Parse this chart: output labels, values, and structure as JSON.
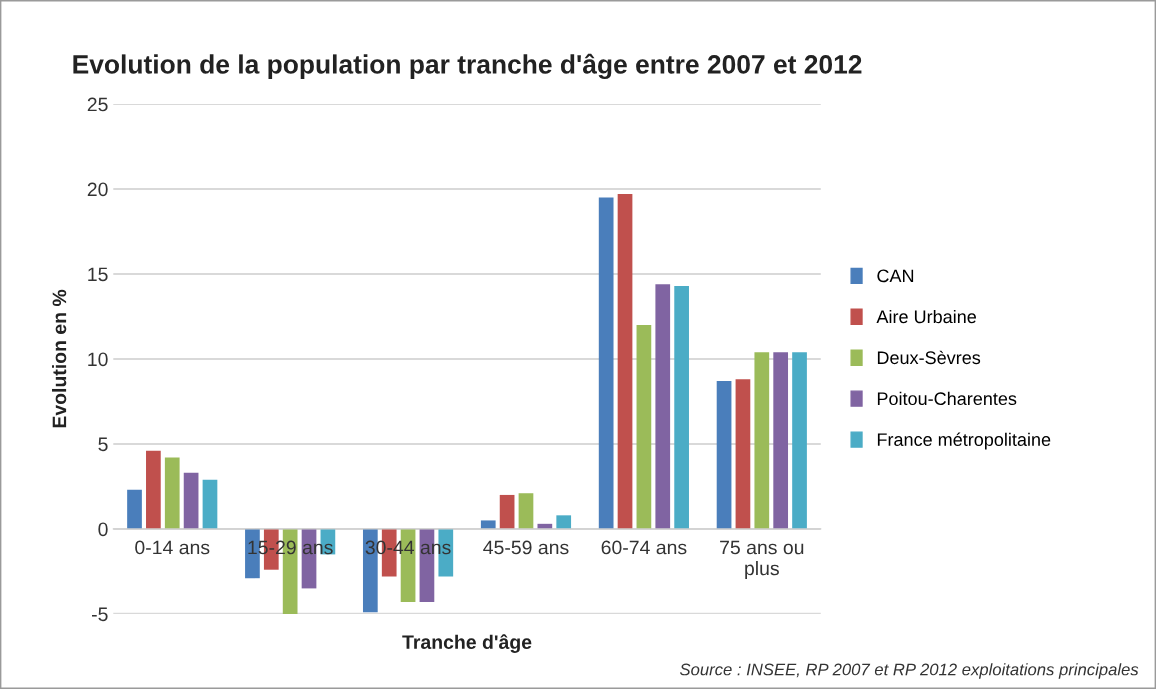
{
  "chart_data": {
    "type": "bar",
    "title": "Evolution de la population par tranche d'âge entre 2007 et 2012",
    "xlabel": "Tranche d'âge",
    "ylabel": "Evolution en %",
    "categories": [
      "0-14 ans",
      "15-29 ans",
      "30-44 ans",
      "45-59 ans",
      "60-74 ans",
      "75 ans ou plus"
    ],
    "series": [
      {
        "name": "CAN",
        "color": "#4a7ebb",
        "values": [
          2.3,
          -2.9,
          -4.9,
          0.5,
          19.5,
          8.7
        ]
      },
      {
        "name": "Aire Urbaine",
        "color": "#c0504d",
        "values": [
          4.6,
          -2.4,
          -2.8,
          2.0,
          19.7,
          8.8
        ]
      },
      {
        "name": "Deux-Sèvres",
        "color": "#9bbb59",
        "values": [
          4.2,
          -5.0,
          -4.3,
          2.1,
          12.0,
          10.4
        ]
      },
      {
        "name": "Poitou-Charentes",
        "color": "#8064a2",
        "values": [
          3.3,
          -3.5,
          -4.3,
          0.3,
          14.4,
          10.4
        ]
      },
      {
        "name": "France métropolitaine",
        "color": "#4bacc6",
        "values": [
          2.9,
          -1.5,
          -2.8,
          0.8,
          14.3,
          10.4
        ]
      }
    ],
    "ylim": [
      -5,
      25
    ],
    "yticks": [
      -5,
      0,
      5,
      10,
      15,
      20,
      25
    ],
    "grid": "y",
    "legend": "right",
    "annotations": [
      "Source : INSEE, RP 2007 et RP 2012 exploitations principales"
    ]
  }
}
